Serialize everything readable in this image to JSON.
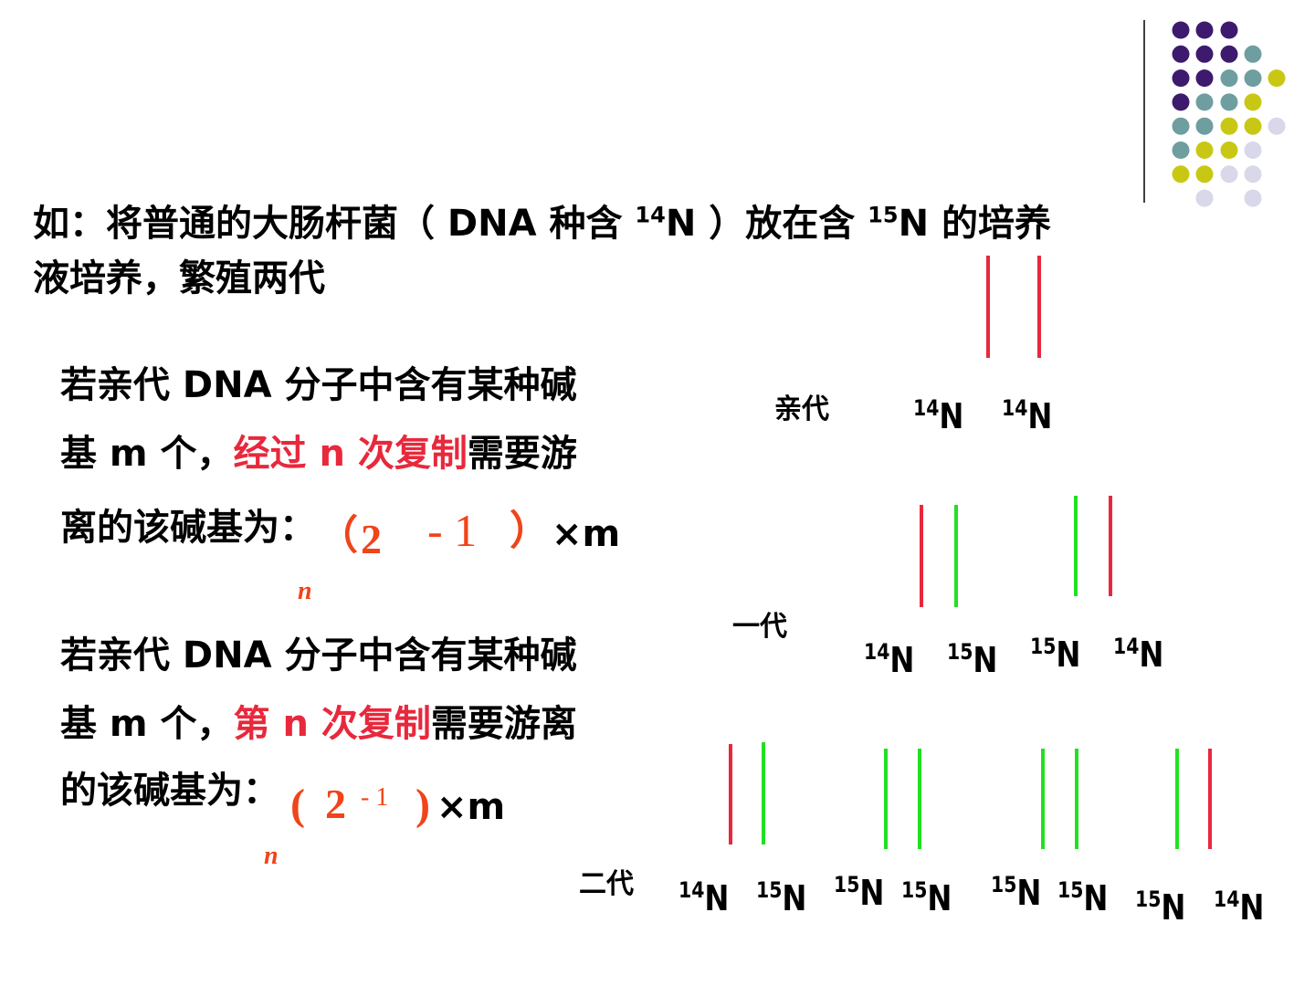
{
  "intro": {
    "line1": {
      "a": "如：将普通的大肠杆菌（ DNA 种含 ",
      "sup1": "14",
      "b": "N ）放在含 ",
      "sup2": "15",
      "c": "N 的培养"
    },
    "line2": "液培养，繁殖两代"
  },
  "rule1": {
    "line1": "若亲代 DNA 分子中含有某种碱",
    "line2_start": "基 m 个，",
    "line2_red": "经过 n 次复制",
    "line2_end": "需要游",
    "line3": "离的该碱基为：",
    "formula": {
      "open": "（",
      "base": "2",
      "minus_one": "- 1",
      "close": "）",
      "times": "×m",
      "exponent": "n"
    }
  },
  "rule2": {
    "line1": "若亲代 DNA 分子中含有某种碱",
    "line2_start": "基 m 个，",
    "line2_red": "第 n 次复制",
    "line2_end": "需要游离",
    "line3": "的该碱基为：",
    "formula": {
      "open": "(",
      "base": "2",
      "minus_one": "- 1",
      "close": ")",
      "times": "×m",
      "exponent": "n"
    }
  },
  "generations": [
    {
      "label": "亲代",
      "strands": [
        {
          "mass": "14",
          "symbol": "N",
          "color": "#e8283c"
        },
        {
          "mass": "14",
          "symbol": "N",
          "color": "#e8283c"
        }
      ]
    },
    {
      "label": "一代",
      "strands": [
        {
          "mass": "14",
          "symbol": "N",
          "color": "#e8283c"
        },
        {
          "mass": "15",
          "symbol": "N",
          "color": "#22e022"
        },
        {
          "mass": "15",
          "symbol": "N",
          "color": "#22e022"
        },
        {
          "mass": "14",
          "symbol": "N",
          "color": "#e8283c"
        }
      ]
    },
    {
      "label": "二代",
      "strands": [
        {
          "mass": "14",
          "symbol": "N",
          "color": "#e8283c"
        },
        {
          "mass": "15",
          "symbol": "N",
          "color": "#22e022"
        },
        {
          "mass": "15",
          "symbol": "N",
          "color": "#22e022"
        },
        {
          "mass": "15",
          "symbol": "N",
          "color": "#22e022"
        },
        {
          "mass": "15",
          "symbol": "N",
          "color": "#22e022"
        },
        {
          "mass": "15",
          "symbol": "N",
          "color": "#22e022"
        },
        {
          "mass": "15",
          "symbol": "N",
          "color": "#22e022"
        },
        {
          "mass": "14",
          "symbol": "N",
          "color": "#e8283c"
        }
      ]
    }
  ]
}
